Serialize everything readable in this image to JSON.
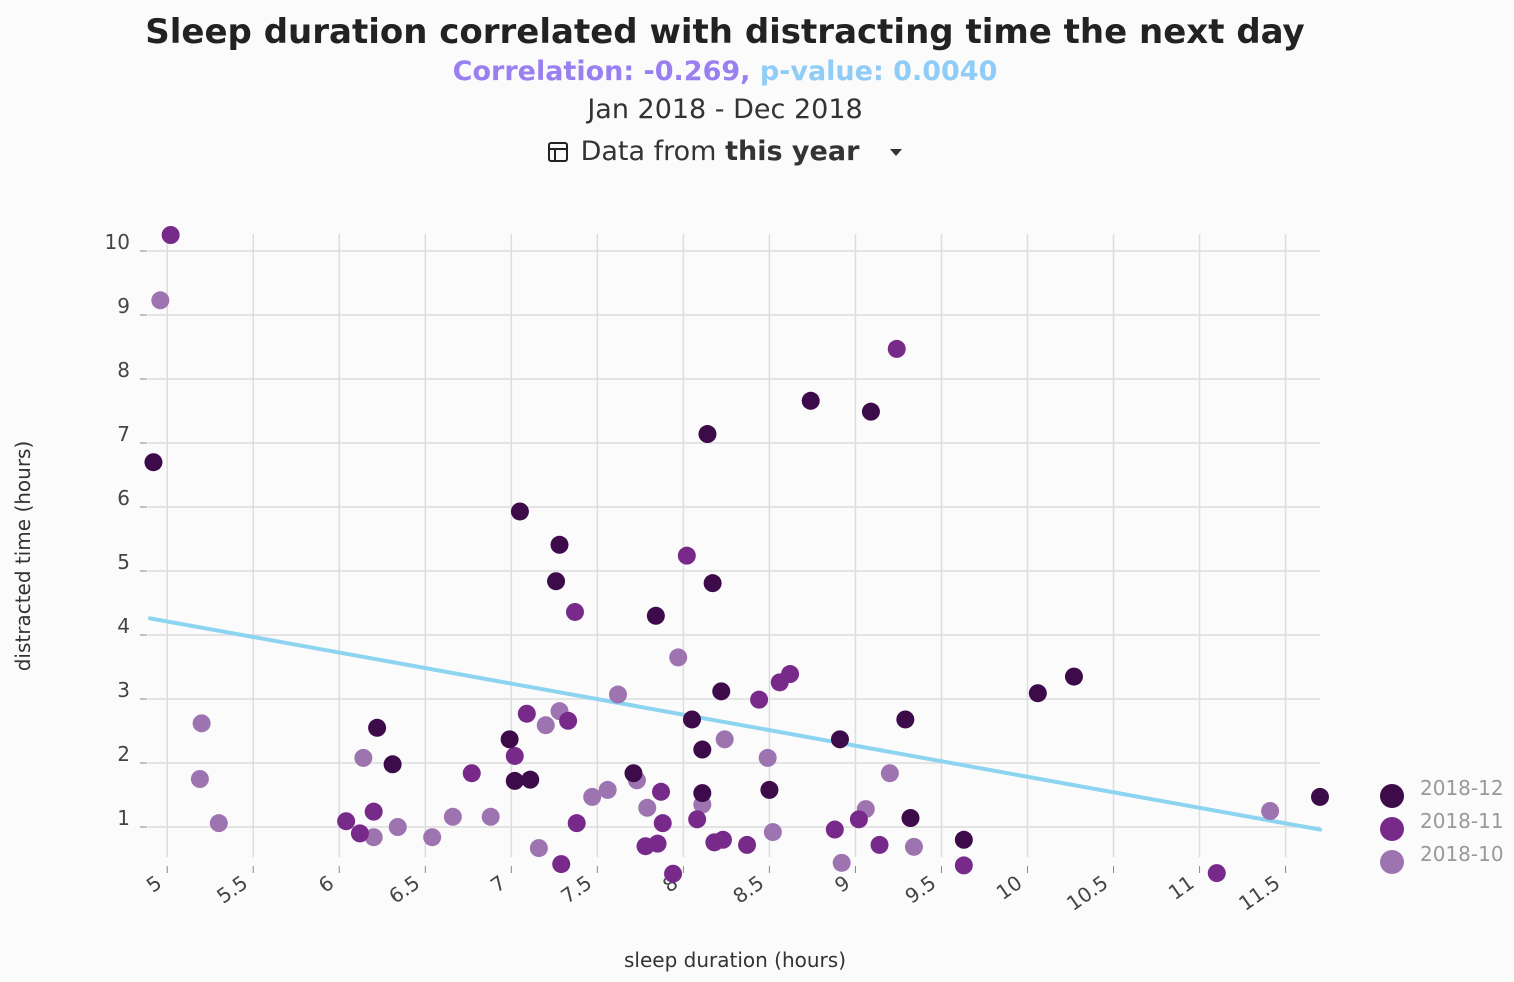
{
  "header": {
    "title": "Sleep duration correlated with distracting time the next day",
    "correlation": "Correlation: -0.269,",
    "pvalue": "p-value: 0.0040",
    "date_range": "Jan 2018 - Dec 2018",
    "period_prefix": "Data from",
    "period_value": "this year",
    "period_icon": "calendar-icon",
    "dropdown_icon": "chevron-down-icon"
  },
  "colors": {
    "correlation": "#9a7ff0",
    "pvalue": "#8fccf7",
    "trend": "#8dd4f0",
    "grid": "#dddddd"
  },
  "chart_data": {
    "type": "scatter",
    "xlabel": "sleep duration (hours)",
    "ylabel": "distracted time (hours)",
    "xlim": [
      4.8,
      11.8
    ],
    "ylim": [
      0.4,
      10.2
    ],
    "x_ticks": [
      "5",
      "5.5",
      "6",
      "6.5",
      "7",
      "7.5",
      "8",
      "8.5",
      "9",
      "9.5",
      "10",
      "10.5",
      "11",
      "11.5"
    ],
    "y_ticks": [
      "1",
      "2",
      "3",
      "4",
      "5",
      "6",
      "7",
      "8",
      "9",
      "10"
    ],
    "grid": true,
    "legend_position": "right",
    "trendline": {
      "x": [
        4.9,
        11.7
      ],
      "y": [
        4.26,
        0.96
      ],
      "color": "#8dd4f0"
    },
    "series": [
      {
        "name": "2018-12",
        "color": "#3d0a4a",
        "points": [
          [
            4.92,
            6.7
          ],
          [
            6.22,
            2.55
          ],
          [
            6.31,
            1.98
          ],
          [
            6.99,
            2.37
          ],
          [
            7.02,
            1.72
          ],
          [
            7.05,
            5.93
          ],
          [
            7.11,
            1.74
          ],
          [
            7.26,
            4.84
          ],
          [
            7.28,
            5.41
          ],
          [
            7.71,
            1.84
          ],
          [
            7.84,
            4.3
          ],
          [
            8.05,
            2.68
          ],
          [
            8.11,
            2.21
          ],
          [
            8.11,
            1.53
          ],
          [
            8.14,
            7.14
          ],
          [
            8.17,
            4.81
          ],
          [
            8.22,
            3.12
          ],
          [
            8.5,
            1.58
          ],
          [
            8.74,
            7.66
          ],
          [
            8.91,
            2.37
          ],
          [
            9.09,
            7.49
          ],
          [
            9.29,
            2.68
          ],
          [
            9.32,
            1.14
          ],
          [
            9.63,
            0.8
          ],
          [
            10.06,
            3.09
          ],
          [
            10.27,
            3.35
          ],
          [
            11.7,
            1.47
          ]
        ]
      },
      {
        "name": "2018-11",
        "color": "#782a8a",
        "points": [
          [
            5.02,
            10.25
          ],
          [
            6.04,
            1.09
          ],
          [
            6.12,
            0.9
          ],
          [
            6.2,
            1.24
          ],
          [
            6.77,
            1.84
          ],
          [
            7.02,
            2.11
          ],
          [
            7.09,
            2.77
          ],
          [
            7.29,
            0.42
          ],
          [
            7.33,
            2.66
          ],
          [
            7.37,
            4.36
          ],
          [
            7.38,
            1.06
          ],
          [
            7.78,
            0.7
          ],
          [
            7.85,
            0.74
          ],
          [
            7.87,
            1.55
          ],
          [
            7.88,
            1.06
          ],
          [
            7.94,
            0.27
          ],
          [
            8.02,
            5.24
          ],
          [
            8.08,
            1.12
          ],
          [
            8.18,
            0.76
          ],
          [
            8.23,
            0.8
          ],
          [
            8.37,
            0.72
          ],
          [
            8.44,
            2.99
          ],
          [
            8.56,
            3.26
          ],
          [
            8.62,
            3.39
          ],
          [
            8.88,
            0.96
          ],
          [
            9.02,
            1.12
          ],
          [
            9.14,
            0.72
          ],
          [
            9.24,
            8.47
          ],
          [
            9.63,
            0.4
          ],
          [
            11.1,
            0.28
          ]
        ]
      },
      {
        "name": "2018-10",
        "color": "#9e74b0",
        "points": [
          [
            4.96,
            9.23
          ],
          [
            5.19,
            1.75
          ],
          [
            5.2,
            2.62
          ],
          [
            5.3,
            1.06
          ],
          [
            6.14,
            2.08
          ],
          [
            6.2,
            0.84
          ],
          [
            6.34,
            1.0
          ],
          [
            6.54,
            0.84
          ],
          [
            6.66,
            1.16
          ],
          [
            6.88,
            1.16
          ],
          [
            7.16,
            0.67
          ],
          [
            7.2,
            2.59
          ],
          [
            7.28,
            2.81
          ],
          [
            7.47,
            1.47
          ],
          [
            7.56,
            1.58
          ],
          [
            7.62,
            3.07
          ],
          [
            7.73,
            1.73
          ],
          [
            7.79,
            1.3
          ],
          [
            7.97,
            3.65
          ],
          [
            8.11,
            1.35
          ],
          [
            8.24,
            2.37
          ],
          [
            8.49,
            2.08
          ],
          [
            8.52,
            0.92
          ],
          [
            8.92,
            0.44
          ],
          [
            9.06,
            1.28
          ],
          [
            9.2,
            1.84
          ],
          [
            9.34,
            0.69
          ],
          [
            11.41,
            1.25
          ]
        ]
      }
    ]
  }
}
